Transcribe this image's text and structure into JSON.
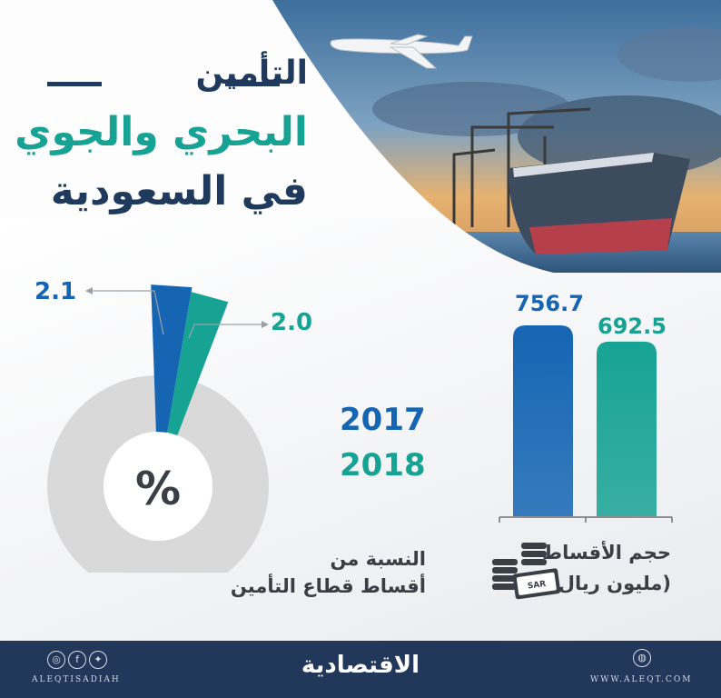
{
  "title": {
    "line1": "التأمين",
    "line2": "البحري والجوي",
    "line3": "في السعودية"
  },
  "colors": {
    "navy": "#1f3a5c",
    "blue": "#1565b3",
    "teal": "#17a394",
    "grey": "#d9d9d9",
    "footer": "#22385a"
  },
  "donut": {
    "center_symbol": "%",
    "caption_line1": "النسبة من",
    "caption_line2": "أقساط قطاع التأمين"
  },
  "years": [
    "2017",
    "2018"
  ],
  "bars": {
    "caption_line1": "حجم الأقساط",
    "caption_line2": "(مليون ريال)",
    "currency_badge": "SAR"
  },
  "chart_data": [
    {
      "type": "pie",
      "title": "النسبة من أقساط قطاع التأمين",
      "center_label": "%",
      "series": [
        {
          "name": "2017",
          "value": 2.1,
          "label": "2.1"
        },
        {
          "name": "2018",
          "value": 2.0,
          "label": "2.0"
        }
      ],
      "total": 100
    },
    {
      "type": "bar",
      "title": "حجم الأقساط",
      "ylabel": "(مليون ريال)",
      "categories": [
        "2017",
        "2018"
      ],
      "values": [
        756.7,
        692.5
      ],
      "labels": [
        "756.7",
        "692.5"
      ]
    }
  ],
  "footer": {
    "brand": "الاقتصادية",
    "handle": "ALEQTISADIAH",
    "site": "WWW.ALEQT.COM",
    "social_icons": [
      "instagram-icon",
      "facebook-icon",
      "twitter-icon"
    ],
    "site_icon": "globe-icon"
  }
}
